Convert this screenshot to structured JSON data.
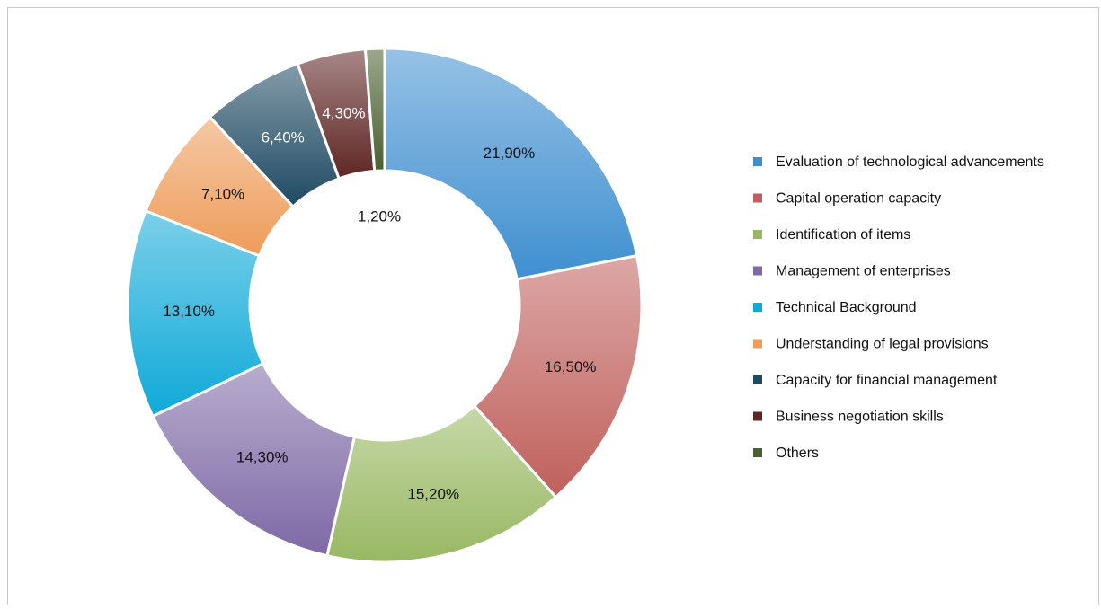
{
  "chart_data": {
    "type": "donut",
    "categories": [
      "Evaluation of technological advancements",
      "Capital operation capacity",
      "Identification of items",
      "Management of enterprises",
      "Technical Background",
      "Understanding of legal provisions",
      "Capacity for financial management",
      "Business negotiation skills",
      "Others"
    ],
    "values": [
      21.9,
      16.5,
      15.2,
      14.3,
      13.1,
      7.1,
      6.4,
      4.3,
      1.2
    ],
    "value_labels": [
      "21,90%",
      "16,50%",
      "15,20%",
      "14,30%",
      "13,10%",
      "7,10%",
      "6,40%",
      "4,30%",
      "1,20%"
    ],
    "colors": [
      "#3f8fd0",
      "#c0605c",
      "#98b862",
      "#7e69a6",
      "#0fa9d8",
      "#ee9c5a",
      "#1f4a63",
      "#5e2624",
      "#4a6030"
    ],
    "legend": "right"
  }
}
